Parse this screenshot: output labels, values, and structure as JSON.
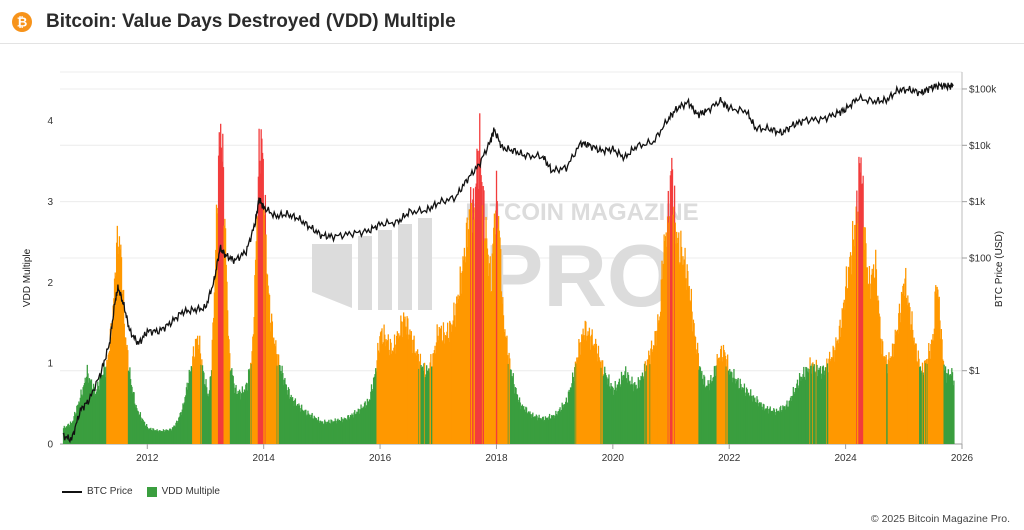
{
  "header": {
    "title": "Bitcoin: Value Days Destroyed (VDD) Multiple",
    "logo_icon": "bitcoin-logo-icon",
    "logo_color": "#f7931a"
  },
  "watermark": {
    "line1": "BITCOIN MAGAZINE",
    "line2": "PRO"
  },
  "legend": {
    "price_label": "BTC Price",
    "vdd_label": "VDD Multiple"
  },
  "copyright": "© 2025 Bitcoin Magazine Pro.",
  "chart_data": {
    "type": "bar",
    "title": "Bitcoin: Value Days Destroyed (VDD) Multiple",
    "xlabel": "",
    "ylabel": "VDD Multiple",
    "y2label": "BTC Price (USD)",
    "xlim": [
      2010.5,
      2026.0
    ],
    "ylim": [
      0,
      4.6
    ],
    "x_ticks": [
      "2012",
      "2014",
      "2016",
      "2018",
      "2020",
      "2022",
      "2024",
      "2026"
    ],
    "y_ticks": [
      "0",
      "1",
      "2",
      "3",
      "4"
    ],
    "y2_scale": "log",
    "y2lim": [
      0.05,
      200000
    ],
    "y2_ticks": [
      {
        "value": 1,
        "label": "$1"
      },
      {
        "value": 100,
        "label": "$100"
      },
      {
        "value": 1000,
        "label": "$1k"
      },
      {
        "value": 10000,
        "label": "$10k"
      },
      {
        "value": 100000,
        "label": "$100k"
      }
    ],
    "grid": true,
    "legend_position": "bottom-left",
    "colors": {
      "low": "#3a9e3f",
      "mid": "#ff9800",
      "high": "#f23c3c",
      "price": "#111111"
    },
    "color_bands": [
      {
        "band": "green",
        "from": 0,
        "to": 1
      },
      {
        "band": "orange",
        "from": 1,
        "to": 3
      },
      {
        "band": "red",
        "from": 3,
        "to": 4.6
      }
    ],
    "series": [
      {
        "name": "VDD Multiple",
        "points": [
          [
            2010.55,
            0.22
          ],
          [
            2010.7,
            0.3
          ],
          [
            2010.8,
            0.55
          ],
          [
            2010.9,
            0.8
          ],
          [
            2010.95,
            1.0
          ],
          [
            2011.0,
            0.9
          ],
          [
            2011.1,
            0.7
          ],
          [
            2011.2,
            0.95
          ],
          [
            2011.3,
            1.1
          ],
          [
            2011.4,
            1.8
          ],
          [
            2011.45,
            2.6
          ],
          [
            2011.5,
            2.9
          ],
          [
            2011.55,
            2.5
          ],
          [
            2011.6,
            1.6
          ],
          [
            2011.7,
            0.9
          ],
          [
            2011.8,
            0.5
          ],
          [
            2011.9,
            0.35
          ],
          [
            2012.0,
            0.22
          ],
          [
            2012.2,
            0.18
          ],
          [
            2012.4,
            0.2
          ],
          [
            2012.5,
            0.3
          ],
          [
            2012.6,
            0.5
          ],
          [
            2012.7,
            0.9
          ],
          [
            2012.8,
            1.3
          ],
          [
            2012.85,
            1.5
          ],
          [
            2012.9,
            1.3
          ],
          [
            2012.95,
            1.0
          ],
          [
            2013.0,
            0.8
          ],
          [
            2013.05,
            0.65
          ],
          [
            2013.1,
            1.2
          ],
          [
            2013.15,
            2.3
          ],
          [
            2013.2,
            3.6
          ],
          [
            2013.25,
            4.45
          ],
          [
            2013.3,
            3.7
          ],
          [
            2013.35,
            2.4
          ],
          [
            2013.4,
            1.2
          ],
          [
            2013.5,
            0.75
          ],
          [
            2013.6,
            0.7
          ],
          [
            2013.7,
            0.8
          ],
          [
            2013.8,
            1.3
          ],
          [
            2013.85,
            2.5
          ],
          [
            2013.9,
            3.8
          ],
          [
            2013.95,
            4.3
          ],
          [
            2014.0,
            3.5
          ],
          [
            2014.05,
            2.4
          ],
          [
            2014.1,
            1.8
          ],
          [
            2014.2,
            1.3
          ],
          [
            2014.3,
            1.0
          ],
          [
            2014.4,
            0.75
          ],
          [
            2014.5,
            0.6
          ],
          [
            2014.7,
            0.45
          ],
          [
            2014.9,
            0.35
          ],
          [
            2015.0,
            0.3
          ],
          [
            2015.2,
            0.32
          ],
          [
            2015.4,
            0.35
          ],
          [
            2015.6,
            0.45
          ],
          [
            2015.8,
            0.6
          ],
          [
            2015.9,
            0.95
          ],
          [
            2016.0,
            1.55
          ],
          [
            2016.1,
            1.45
          ],
          [
            2016.2,
            1.3
          ],
          [
            2016.3,
            1.5
          ],
          [
            2016.4,
            1.75
          ],
          [
            2016.5,
            1.55
          ],
          [
            2016.6,
            1.3
          ],
          [
            2016.7,
            1.1
          ],
          [
            2016.8,
            1.0
          ],
          [
            2016.9,
            1.2
          ],
          [
            2017.0,
            1.6
          ],
          [
            2017.1,
            1.5
          ],
          [
            2017.2,
            1.6
          ],
          [
            2017.3,
            1.9
          ],
          [
            2017.4,
            2.4
          ],
          [
            2017.5,
            3.0
          ],
          [
            2017.55,
            3.4
          ],
          [
            2017.6,
            3.2
          ],
          [
            2017.65,
            3.8
          ],
          [
            2017.7,
            4.2
          ],
          [
            2017.75,
            3.5
          ],
          [
            2017.8,
            3.0
          ],
          [
            2017.85,
            2.6
          ],
          [
            2017.9,
            2.2
          ],
          [
            2017.95,
            3.1
          ],
          [
            2018.0,
            3.45
          ],
          [
            2018.05,
            2.8
          ],
          [
            2018.1,
            1.8
          ],
          [
            2018.2,
            1.2
          ],
          [
            2018.3,
            0.8
          ],
          [
            2018.4,
            0.55
          ],
          [
            2018.6,
            0.4
          ],
          [
            2018.8,
            0.35
          ],
          [
            2019.0,
            0.4
          ],
          [
            2019.2,
            0.6
          ],
          [
            2019.3,
            0.9
          ],
          [
            2019.4,
            1.3
          ],
          [
            2019.5,
            1.6
          ],
          [
            2019.6,
            1.5
          ],
          [
            2019.7,
            1.35
          ],
          [
            2019.8,
            1.1
          ],
          [
            2019.9,
            0.9
          ],
          [
            2020.0,
            0.75
          ],
          [
            2020.1,
            0.85
          ],
          [
            2020.2,
            1.0
          ],
          [
            2020.3,
            0.85
          ],
          [
            2020.4,
            0.8
          ],
          [
            2020.5,
            0.95
          ],
          [
            2020.6,
            1.2
          ],
          [
            2020.7,
            1.4
          ],
          [
            2020.8,
            1.8
          ],
          [
            2020.85,
            2.6
          ],
          [
            2020.9,
            2.9
          ],
          [
            2020.95,
            3.2
          ],
          [
            2021.0,
            3.9
          ],
          [
            2021.05,
            3.2
          ],
          [
            2021.1,
            2.8
          ],
          [
            2021.2,
            2.6
          ],
          [
            2021.3,
            2.2
          ],
          [
            2021.4,
            1.5
          ],
          [
            2021.5,
            1.0
          ],
          [
            2021.6,
            0.8
          ],
          [
            2021.7,
            0.9
          ],
          [
            2021.8,
            1.2
          ],
          [
            2021.9,
            1.3
          ],
          [
            2022.0,
            1.0
          ],
          [
            2022.2,
            0.8
          ],
          [
            2022.4,
            0.65
          ],
          [
            2022.6,
            0.5
          ],
          [
            2022.8,
            0.45
          ],
          [
            2023.0,
            0.55
          ],
          [
            2023.2,
            0.9
          ],
          [
            2023.4,
            1.1
          ],
          [
            2023.6,
            1.0
          ],
          [
            2023.8,
            1.3
          ],
          [
            2023.9,
            1.6
          ],
          [
            2024.0,
            2.2
          ],
          [
            2024.1,
            2.7
          ],
          [
            2024.2,
            3.4
          ],
          [
            2024.25,
            4.05
          ],
          [
            2024.3,
            3.2
          ],
          [
            2024.35,
            2.5
          ],
          [
            2024.4,
            2.2
          ],
          [
            2024.5,
            2.5
          ],
          [
            2024.55,
            2.0
          ],
          [
            2024.6,
            1.4
          ],
          [
            2024.7,
            1.1
          ],
          [
            2024.8,
            1.3
          ],
          [
            2024.9,
            1.7
          ],
          [
            2025.0,
            2.3
          ],
          [
            2025.1,
            1.8
          ],
          [
            2025.2,
            1.3
          ],
          [
            2025.3,
            1.0
          ],
          [
            2025.4,
            1.2
          ],
          [
            2025.5,
            1.5
          ],
          [
            2025.55,
            2.3
          ],
          [
            2025.6,
            1.9
          ],
          [
            2025.65,
            1.3
          ],
          [
            2025.7,
            1.0
          ],
          [
            2025.75,
            0.95
          ],
          [
            2025.8,
            1.0
          ],
          [
            2025.85,
            0.9
          ]
        ]
      },
      {
        "name": "BTC Price",
        "points": [
          [
            2010.55,
            0.07
          ],
          [
            2010.7,
            0.06
          ],
          [
            2010.85,
            0.2
          ],
          [
            2011.0,
            0.3
          ],
          [
            2011.2,
            0.9
          ],
          [
            2011.35,
            3
          ],
          [
            2011.45,
            18
          ],
          [
            2011.5,
            30
          ],
          [
            2011.6,
            14
          ],
          [
            2011.7,
            5
          ],
          [
            2011.85,
            3
          ],
          [
            2012.0,
            5
          ],
          [
            2012.2,
            5
          ],
          [
            2012.4,
            7
          ],
          [
            2012.6,
            11
          ],
          [
            2012.8,
            12
          ],
          [
            2013.0,
            13
          ],
          [
            2013.15,
            40
          ],
          [
            2013.25,
            150
          ],
          [
            2013.35,
            110
          ],
          [
            2013.5,
            90
          ],
          [
            2013.7,
            130
          ],
          [
            2013.85,
            400
          ],
          [
            2013.92,
            1100
          ],
          [
            2014.0,
            800
          ],
          [
            2014.2,
            550
          ],
          [
            2014.4,
            600
          ],
          [
            2014.6,
            500
          ],
          [
            2014.8,
            350
          ],
          [
            2015.0,
            250
          ],
          [
            2015.2,
            240
          ],
          [
            2015.5,
            270
          ],
          [
            2015.8,
            300
          ],
          [
            2016.0,
            400
          ],
          [
            2016.3,
            430
          ],
          [
            2016.5,
            650
          ],
          [
            2016.8,
            700
          ],
          [
            2017.0,
            950
          ],
          [
            2017.3,
            1200
          ],
          [
            2017.5,
            2500
          ],
          [
            2017.7,
            4500
          ],
          [
            2017.9,
            12000
          ],
          [
            2017.96,
            19000
          ],
          [
            2018.1,
            9000
          ],
          [
            2018.3,
            8000
          ],
          [
            2018.5,
            6500
          ],
          [
            2018.8,
            6300
          ],
          [
            2018.95,
            3500
          ],
          [
            2019.2,
            4000
          ],
          [
            2019.45,
            11000
          ],
          [
            2019.6,
            10000
          ],
          [
            2019.8,
            8000
          ],
          [
            2020.0,
            8500
          ],
          [
            2020.2,
            6000
          ],
          [
            2020.4,
            9500
          ],
          [
            2020.7,
            11500
          ],
          [
            2020.95,
            29000
          ],
          [
            2021.1,
            45000
          ],
          [
            2021.3,
            58000
          ],
          [
            2021.45,
            35000
          ],
          [
            2021.6,
            40000
          ],
          [
            2021.85,
            62000
          ],
          [
            2022.0,
            45000
          ],
          [
            2022.3,
            40000
          ],
          [
            2022.45,
            20000
          ],
          [
            2022.7,
            19500
          ],
          [
            2022.9,
            16500
          ],
          [
            2023.1,
            23000
          ],
          [
            2023.3,
            28000
          ],
          [
            2023.6,
            29000
          ],
          [
            2023.85,
            37000
          ],
          [
            2024.0,
            43000
          ],
          [
            2024.2,
            68000
          ],
          [
            2024.5,
            60000
          ],
          [
            2024.7,
            63000
          ],
          [
            2024.9,
            95000
          ],
          [
            2025.1,
            97000
          ],
          [
            2025.3,
            85000
          ],
          [
            2025.45,
            105000
          ],
          [
            2025.6,
            115000
          ],
          [
            2025.75,
            112000
          ],
          [
            2025.85,
            114000
          ]
        ]
      }
    ]
  }
}
